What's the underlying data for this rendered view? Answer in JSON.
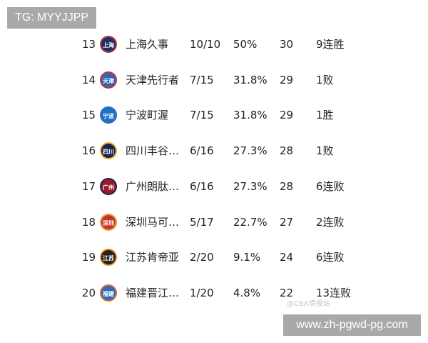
{
  "watermark_tag": "TG: MYYJJPP",
  "watermark_url": "www.zh-pgwd-pg.com",
  "watermark_source": "@CBA情报站",
  "rows": [
    {
      "rank": "13",
      "logo": "上海",
      "name": "上海久事",
      "record": "10/10",
      "pct": "50%",
      "gb": "30",
      "streak": "9连胜",
      "color": "#1d2f6b",
      "accent": "#c0392b"
    },
    {
      "rank": "14",
      "logo": "天津",
      "name": "天津先行者",
      "record": "7/15",
      "pct": "31.8%",
      "gb": "29",
      "streak": "1败",
      "color": "#2a67b8",
      "accent": "#d0312d"
    },
    {
      "rank": "15",
      "logo": "宁波",
      "name": "宁波町渥",
      "record": "7/15",
      "pct": "31.8%",
      "gb": "29",
      "streak": "1胜",
      "color": "#1f6fc4",
      "accent": "#1f6fc4"
    },
    {
      "rank": "16",
      "logo": "四川",
      "name": "四川丰谷…",
      "record": "6/16",
      "pct": "27.3%",
      "gb": "28",
      "streak": "1败",
      "color": "#1c2453",
      "accent": "#e8b923"
    },
    {
      "rank": "17",
      "logo": "广州",
      "name": "广州朗肽…",
      "record": "6/16",
      "pct": "27.3%",
      "gb": "28",
      "streak": "6连败",
      "color": "#9b1b2a",
      "accent": "#1c2453"
    },
    {
      "rank": "18",
      "logo": "深圳",
      "name": "深圳马可…",
      "record": "5/17",
      "pct": "22.7%",
      "gb": "27",
      "streak": "2连败",
      "color": "#c8352b",
      "accent": "#e8a33a"
    },
    {
      "rank": "19",
      "logo": "江苏",
      "name": "江苏肯帝亚",
      "record": "2/20",
      "pct": "9.1%",
      "gb": "24",
      "streak": "6连败",
      "color": "#222222",
      "accent": "#f08a1c"
    },
    {
      "rank": "20",
      "logo": "福建",
      "name": "福建晋江…",
      "record": "1/20",
      "pct": "4.8%",
      "gb": "22",
      "streak": "13连败",
      "color": "#2a6db8",
      "accent": "#e86a2a"
    }
  ]
}
